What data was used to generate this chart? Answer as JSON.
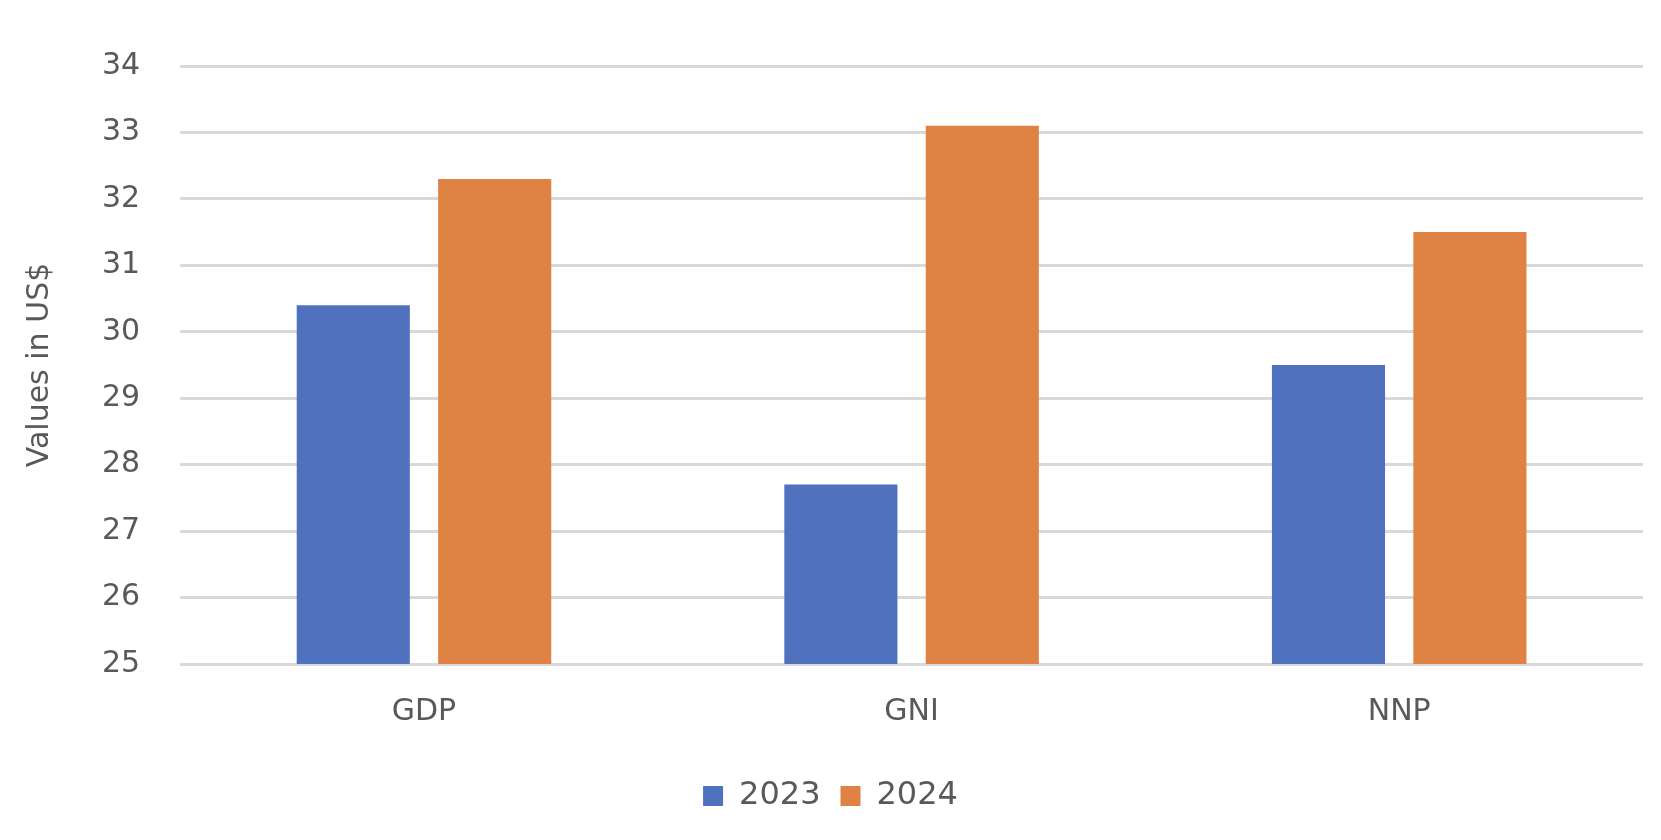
{
  "chart_data": {
    "type": "bar",
    "ylabel": "Values in US$",
    "categories": [
      "GDP",
      "GNI",
      "NNP"
    ],
    "series": [
      {
        "name": "2023",
        "color": "#4f71be",
        "values": [
          30.4,
          27.7,
          29.5
        ]
      },
      {
        "name": "2024",
        "color": "#de8344",
        "values": [
          32.3,
          33.1,
          31.5
        ]
      }
    ],
    "ylim": [
      25,
      34
    ],
    "yticks": [
      25,
      26,
      27,
      28,
      29,
      30,
      31,
      32,
      33,
      34
    ],
    "grid": "y",
    "legend": "bottom"
  }
}
